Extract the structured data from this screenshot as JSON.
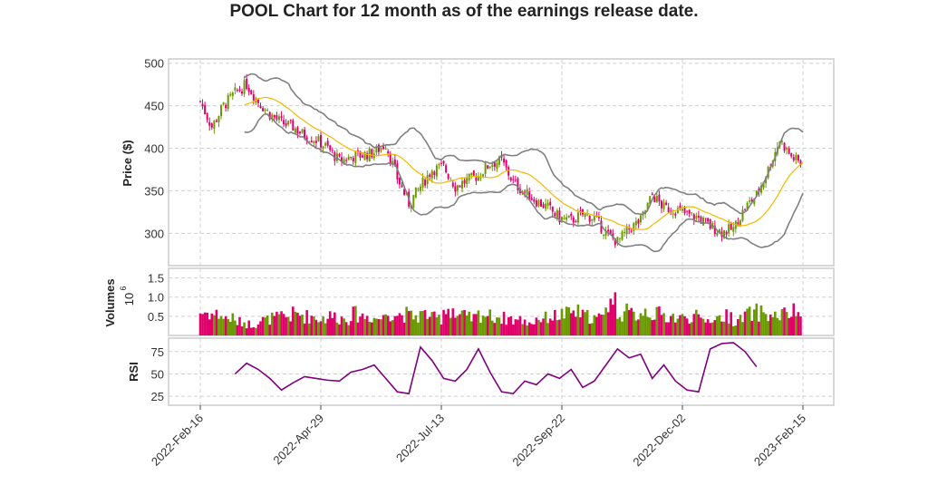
{
  "chart_data": {
    "type": "candlestick",
    "title": "POOL Chart for 12 month as of the earnings release date.",
    "colors": {
      "up": "#6a9a00",
      "down": "#e0006a",
      "ma": "#f5b800",
      "bands": "#808080",
      "rsi": "#800080",
      "grid": "#d0d0d0"
    },
    "x_ticks": [
      "2022-Feb-16",
      "2022-Apr-29",
      "2022-Jul-13",
      "2022-Sep-22",
      "2022-Dec-02",
      "2023-Feb-15"
    ],
    "price": {
      "ylabel": "Price ($)",
      "yticks": [
        300,
        350,
        400,
        450,
        500
      ],
      "ylim": [
        262,
        505
      ],
      "weekly_close": [
        455,
        425,
        450,
        465,
        475,
        455,
        440,
        430,
        425,
        415,
        410,
        400,
        385,
        390,
        392,
        395,
        405,
        365,
        335,
        355,
        375,
        378,
        355,
        362,
        368,
        382,
        385,
        360,
        348,
        338,
        330,
        318,
        315,
        322,
        318,
        300,
        290,
        305,
        315,
        345,
        330,
        328,
        322,
        318,
        308,
        302,
        305,
        330,
        345,
        375,
        410,
        390,
        380
      ]
    },
    "volume": {
      "ylabel": "Volumes",
      "exponent": "10",
      "exponent_power": "6",
      "yticks": [
        "0.5",
        "1.0",
        "1.5"
      ],
      "ylim": [
        0,
        1.75
      ],
      "weekly_millions": [
        0.6,
        0.55,
        0.45,
        0.35,
        0.3,
        0.4,
        0.45,
        0.5,
        0.55,
        0.5,
        0.45,
        0.5,
        0.45,
        0.55,
        0.5,
        0.45,
        0.6,
        0.55,
        0.5,
        0.55,
        0.45,
        0.7,
        0.5,
        0.45,
        0.55,
        0.5,
        0.45,
        0.4,
        0.35,
        0.45,
        0.5,
        0.55,
        0.6,
        0.5,
        0.45,
        0.9,
        0.6,
        0.55,
        0.65,
        0.55,
        0.5,
        0.45,
        0.5,
        0.4,
        0.45,
        0.5,
        0.4,
        0.55,
        0.6,
        0.5,
        0.55,
        0.6,
        0.55
      ]
    },
    "rsi": {
      "ylabel": "RSI",
      "yticks": [
        25,
        50,
        75
      ],
      "ylim": [
        15,
        90
      ],
      "weekly": [
        null,
        null,
        null,
        50,
        62,
        55,
        45,
        32,
        40,
        47,
        45,
        43,
        42,
        52,
        55,
        60,
        45,
        30,
        28,
        80,
        65,
        45,
        42,
        55,
        78,
        52,
        30,
        28,
        42,
        38,
        50,
        45,
        55,
        35,
        42,
        60,
        78,
        68,
        72,
        45,
        60,
        42,
        32,
        30,
        78,
        84,
        85,
        75,
        58,
        null,
        null,
        null,
        null
      ]
    }
  }
}
